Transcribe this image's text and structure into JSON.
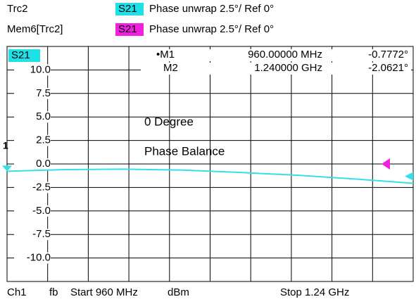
{
  "chart_data": {
    "type": "line",
    "header": [
      {
        "trace": "Trc2",
        "param": "S21",
        "format": "Phase unwrap  2.5°/  Ref 0°",
        "color": "#1ee0e8"
      },
      {
        "trace": "Mem6[Trc2]",
        "param": "S21",
        "format": "Phase unwrap  2.5°/  Ref 0°",
        "color": "#f020e0"
      }
    ],
    "trace_label": "S21",
    "x": [
      960,
      1000,
      1040,
      1080,
      1120,
      1160,
      1200,
      1240
    ],
    "series": [
      {
        "name": "S21",
        "color": "#33e0e8",
        "values": [
          -0.7772,
          -0.6,
          -0.55,
          -0.65,
          -0.9,
          -1.2,
          -1.6,
          -2.0621
        ]
      }
    ],
    "xlim": [
      960,
      1240
    ],
    "ylim": [
      -12.5,
      12.5
    ],
    "yticks": [
      {
        "value": 10,
        "label": "10.0"
      },
      7.5,
      {
        "value": 5,
        "label": "5.0"
      },
      2.5,
      {
        "value": 0,
        "label": "0.0"
      },
      -2.5,
      {
        "value": -5,
        "label": "-5.0"
      },
      -7.5,
      {
        "value": -10,
        "label": "-10.0"
      }
    ],
    "grid": true,
    "markers": [
      {
        "name": "•M1",
        "stimulus": "960.00000 MHz",
        "response": "-0.7772°",
        "flag": "1"
      },
      {
        "name": "M2",
        "stimulus": "1.240000 GHz",
        "response": "-2.0621°"
      }
    ],
    "annotations": [
      "0 Degree",
      "Phase Balance"
    ],
    "footer": [
      "Ch1",
      "fb",
      "Start  960 MHz",
      "dBm",
      "Stop  1.24 GHz"
    ]
  }
}
